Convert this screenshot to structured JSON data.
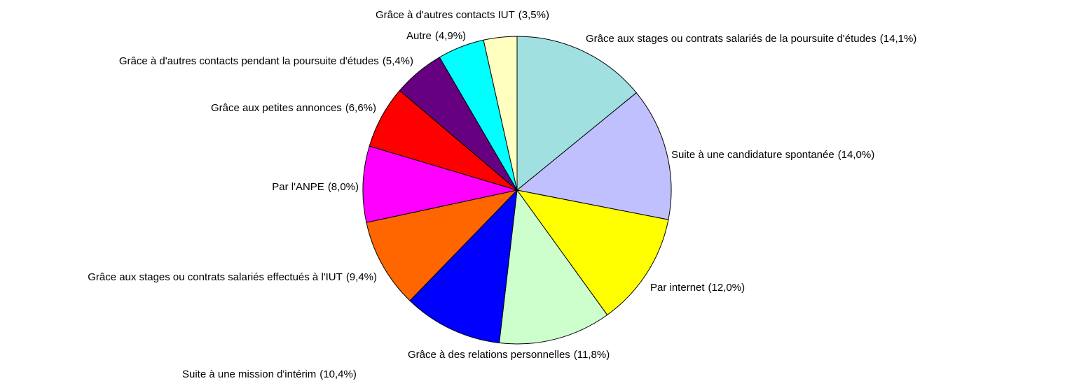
{
  "chart_data": {
    "type": "pie",
    "categories": [
      "Grâce aux stages ou contrats salariés de la poursuite d'études",
      "Suite à une candidature spontanée",
      "Par internet",
      "Grâce à des relations personnelles",
      "Suite à une mission d'intérim",
      "Grâce aux stages ou contrats salariés effectués à l'IUT",
      "Par l'ANPE",
      "Grâce aux petites annonces",
      "Grâce à d'autres contacts pendant la poursuite d'études",
      "Autre",
      "Grâce à d'autres contacts IUT"
    ],
    "values": [
      14.1,
      14.0,
      12.0,
      11.8,
      10.4,
      9.4,
      8.0,
      6.6,
      5.4,
      4.9,
      3.5
    ],
    "value_labels": [
      "(14,1%)",
      "(14,0%)",
      "(12,0%)",
      "(11,8%)",
      "(10,4%)",
      "(9,4%)",
      "(8,0%)",
      "(6,6%)",
      "(5,4%)",
      "(4,9%)",
      "(3,5%)"
    ],
    "colors": [
      "#a0e0e0",
      "#c0c0ff",
      "#ffff00",
      "#ccffcc",
      "#0000ff",
      "#ff6600",
      "#ff00ff",
      "#ff0000",
      "#660080",
      "#00ffff",
      "#ffffc0"
    ]
  }
}
